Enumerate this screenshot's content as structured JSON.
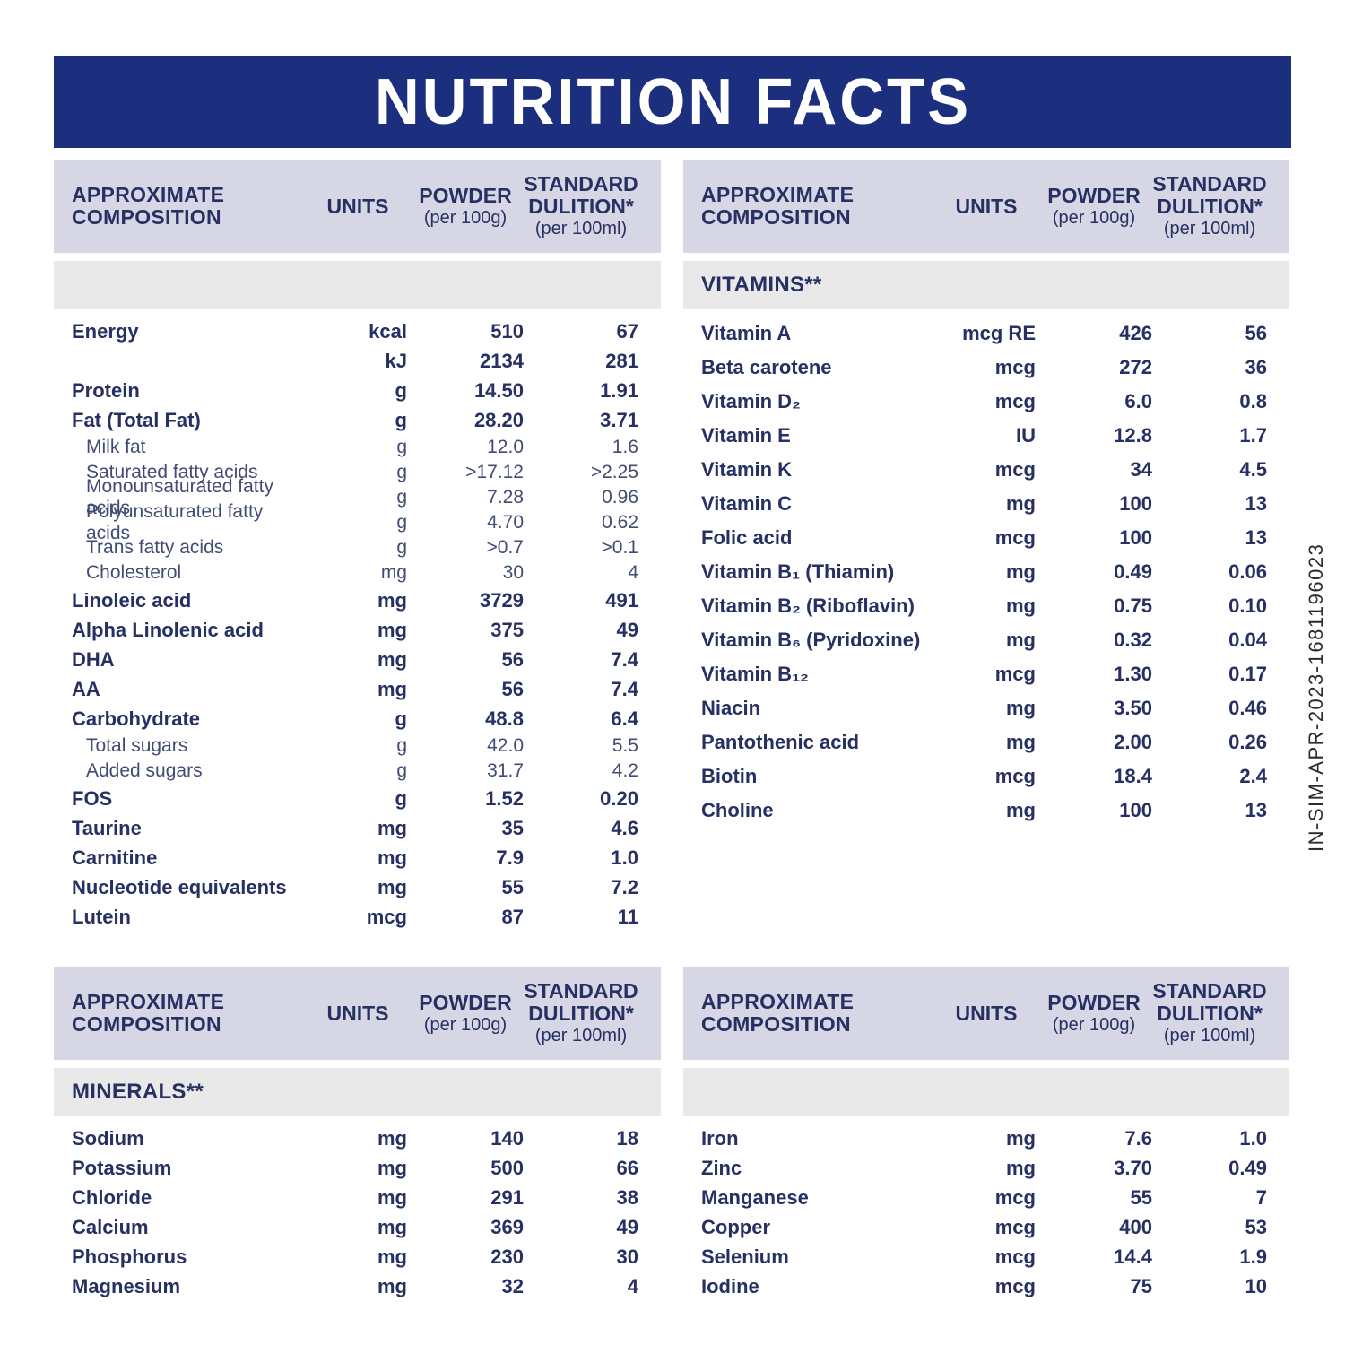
{
  "title": "NUTRITION FACTS",
  "side_code": "IN-SIM-APR-2023-1681196023",
  "colors": {
    "banner_navy": "#1c2f7e",
    "text_navy": "#263063",
    "header_band": "#d7d6e4",
    "section_band": "#e9e9e9"
  },
  "header": {
    "composition": "APPROXIMATE COMPOSITION",
    "units": "UNITS",
    "powder_label": "POWDER",
    "powder_sub": "(per 100g)",
    "dilution_line1": "STANDARD",
    "dilution_line2": "DULITION*",
    "dilution_sub": "(per 100ml)"
  },
  "tables": {
    "main": {
      "section": "",
      "rows": [
        {
          "name": "Energy",
          "units": "kcal",
          "powder": "510",
          "dilution": "67",
          "style": "bold"
        },
        {
          "name": "",
          "units": "kJ",
          "powder": "2134",
          "dilution": "281",
          "style": "bold"
        },
        {
          "name": "Protein",
          "units": "g",
          "powder": "14.50",
          "dilution": "1.91",
          "style": "bold"
        },
        {
          "name": "Fat (Total Fat)",
          "units": "g",
          "powder": "28.20",
          "dilution": "3.71",
          "style": "bold"
        },
        {
          "name": "Milk fat",
          "units": "g",
          "powder": "12.0",
          "dilution": "1.6",
          "style": "sub"
        },
        {
          "name": "Saturated fatty acids",
          "units": "g",
          "powder": ">17.12",
          "dilution": ">2.25",
          "style": "sub"
        },
        {
          "name": "Monounsaturated fatty acids",
          "units": "g",
          "powder": "7.28",
          "dilution": "0.96",
          "style": "sub"
        },
        {
          "name": "Polyunsaturated fatty acids",
          "units": "g",
          "powder": "4.70",
          "dilution": "0.62",
          "style": "sub"
        },
        {
          "name": "Trans fatty acids",
          "units": "g",
          "powder": ">0.7",
          "dilution": ">0.1",
          "style": "sub"
        },
        {
          "name": "Cholesterol",
          "units": "mg",
          "powder": "30",
          "dilution": "4",
          "style": "sub"
        },
        {
          "name": "Linoleic acid",
          "units": "mg",
          "powder": "3729",
          "dilution": "491",
          "style": "bold"
        },
        {
          "name": "Alpha Linolenic acid",
          "units": "mg",
          "powder": "375",
          "dilution": "49",
          "style": "bold"
        },
        {
          "name": "DHA",
          "units": "mg",
          "powder": "56",
          "dilution": "7.4",
          "style": "bold"
        },
        {
          "name": "AA",
          "units": "mg",
          "powder": "56",
          "dilution": "7.4",
          "style": "bold"
        },
        {
          "name": "Carbohydrate",
          "units": "g",
          "powder": "48.8",
          "dilution": "6.4",
          "style": "bold"
        },
        {
          "name": "Total sugars",
          "units": "g",
          "powder": "42.0",
          "dilution": "5.5",
          "style": "sub"
        },
        {
          "name": "Added sugars",
          "units": "g",
          "powder": "31.7",
          "dilution": "4.2",
          "style": "sub"
        },
        {
          "name": "FOS",
          "units": "g",
          "powder": "1.52",
          "dilution": "0.20",
          "style": "bold"
        },
        {
          "name": "Taurine",
          "units": "mg",
          "powder": "35",
          "dilution": "4.6",
          "style": "bold"
        },
        {
          "name": "Carnitine",
          "units": "mg",
          "powder": "7.9",
          "dilution": "1.0",
          "style": "bold"
        },
        {
          "name": "Nucleotide equivalents",
          "units": "mg",
          "powder": "55",
          "dilution": "7.2",
          "style": "bold"
        },
        {
          "name": "Lutein",
          "units": "mcg",
          "powder": "87",
          "dilution": "11",
          "style": "bold"
        }
      ]
    },
    "vitamins": {
      "section": "VITAMINS**",
      "rows": [
        {
          "name": "Vitamin A",
          "units": "mcg RE",
          "powder": "426",
          "dilution": "56",
          "style": "bold"
        },
        {
          "name": "Beta carotene",
          "units": "mcg",
          "powder": "272",
          "dilution": "36",
          "style": "bold"
        },
        {
          "name": "Vitamin D₂",
          "units": "mcg",
          "powder": "6.0",
          "dilution": "0.8",
          "style": "bold"
        },
        {
          "name": "Vitamin E",
          "units": "IU",
          "powder": "12.8",
          "dilution": "1.7",
          "style": "bold"
        },
        {
          "name": "Vitamin K",
          "units": "mcg",
          "powder": "34",
          "dilution": "4.5",
          "style": "bold"
        },
        {
          "name": "Vitamin C",
          "units": "mg",
          "powder": "100",
          "dilution": "13",
          "style": "bold"
        },
        {
          "name": "Folic acid",
          "units": "mcg",
          "powder": "100",
          "dilution": "13",
          "style": "bold"
        },
        {
          "name": "Vitamin B₁ (Thiamin)",
          "units": "mg",
          "powder": "0.49",
          "dilution": "0.06",
          "style": "bold"
        },
        {
          "name": "Vitamin B₂ (Riboflavin)",
          "units": "mg",
          "powder": "0.75",
          "dilution": "0.10",
          "style": "bold"
        },
        {
          "name": "Vitamin B₆ (Pyridoxine)",
          "units": "mg",
          "powder": "0.32",
          "dilution": "0.04",
          "style": "bold"
        },
        {
          "name": "Vitamin B₁₂",
          "units": "mcg",
          "powder": "1.30",
          "dilution": "0.17",
          "style": "bold"
        },
        {
          "name": "Niacin",
          "units": "mg",
          "powder": "3.50",
          "dilution": "0.46",
          "style": "bold"
        },
        {
          "name": "Pantothenic acid",
          "units": "mg",
          "powder": "2.00",
          "dilution": "0.26",
          "style": "bold"
        },
        {
          "name": "Biotin",
          "units": "mcg",
          "powder": "18.4",
          "dilution": "2.4",
          "style": "bold"
        },
        {
          "name": "Choline",
          "units": "mg",
          "powder": "100",
          "dilution": "13",
          "style": "bold"
        }
      ]
    },
    "minerals": {
      "section": "MINERALS**",
      "rows": [
        {
          "name": "Sodium",
          "units": "mg",
          "powder": "140",
          "dilution": "18",
          "style": "bold"
        },
        {
          "name": "Potassium",
          "units": "mg",
          "powder": "500",
          "dilution": "66",
          "style": "bold"
        },
        {
          "name": "Chloride",
          "units": "mg",
          "powder": "291",
          "dilution": "38",
          "style": "bold"
        },
        {
          "name": "Calcium",
          "units": "mg",
          "powder": "369",
          "dilution": "49",
          "style": "bold"
        },
        {
          "name": "Phosphorus",
          "units": "mg",
          "powder": "230",
          "dilution": "30",
          "style": "bold"
        },
        {
          "name": "Magnesium",
          "units": "mg",
          "powder": "32",
          "dilution": "4",
          "style": "bold"
        }
      ]
    },
    "trace": {
      "section": "",
      "rows": [
        {
          "name": "Iron",
          "units": "mg",
          "powder": "7.6",
          "dilution": "1.0",
          "style": "bold"
        },
        {
          "name": "Zinc",
          "units": "mg",
          "powder": "3.70",
          "dilution": "0.49",
          "style": "bold"
        },
        {
          "name": "Manganese",
          "units": "mcg",
          "powder": "55",
          "dilution": "7",
          "style": "bold"
        },
        {
          "name": "Copper",
          "units": "mcg",
          "powder": "400",
          "dilution": "53",
          "style": "bold"
        },
        {
          "name": "Selenium",
          "units": "mcg",
          "powder": "14.4",
          "dilution": "1.9",
          "style": "bold"
        },
        {
          "name": "Iodine",
          "units": "mcg",
          "powder": "75",
          "dilution": "10",
          "style": "bold"
        }
      ]
    }
  }
}
